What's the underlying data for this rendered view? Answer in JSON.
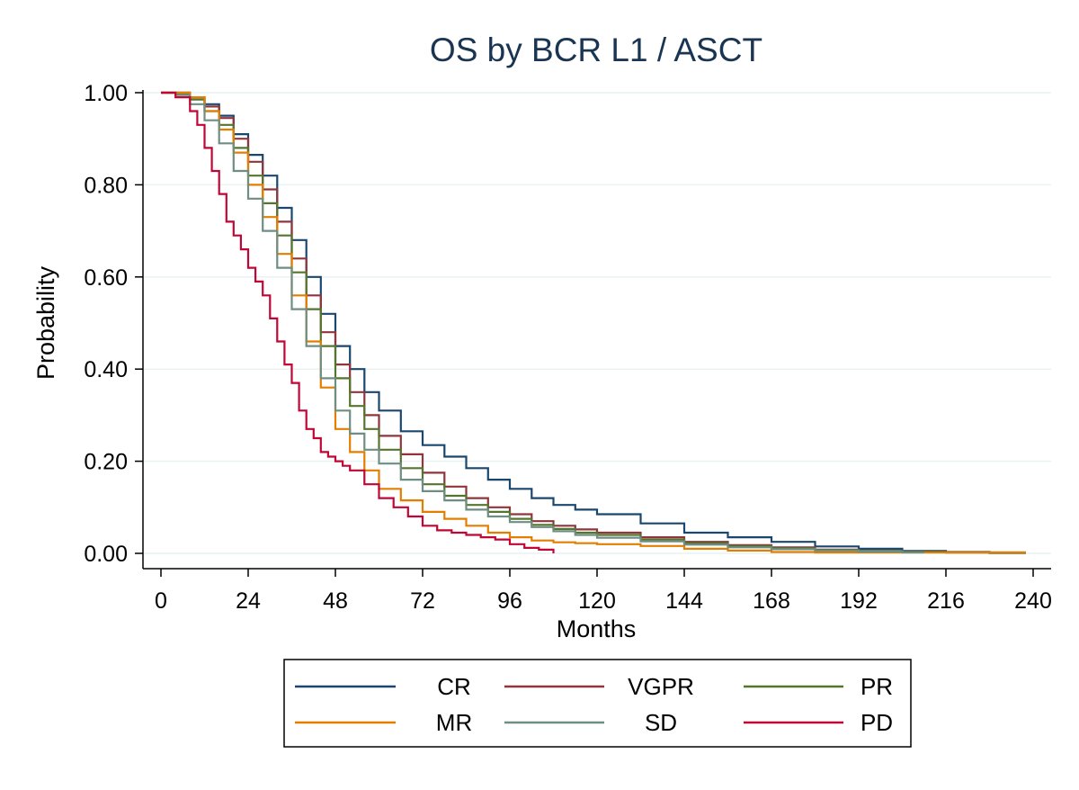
{
  "chart_data": {
    "type": "line",
    "title": "OS by BCR L1 / ASCT",
    "xlabel": "Months",
    "ylabel": "Probability",
    "xlim": [
      0,
      240
    ],
    "ylim": [
      0,
      1
    ],
    "xticks": [
      0,
      24,
      48,
      72,
      96,
      120,
      144,
      168,
      192,
      216,
      240
    ],
    "xtick_labels": [
      "0",
      "24",
      "48",
      "72",
      "96",
      "120",
      "144",
      "168",
      "192",
      "216",
      "240"
    ],
    "yticks": [
      0,
      0.2,
      0.4,
      0.6,
      0.8,
      1.0
    ],
    "ytick_labels": [
      "0.00",
      "0.20",
      "0.40",
      "0.60",
      "0.80",
      "1.00"
    ],
    "grid": "horizontal",
    "legend_placement": "bottom",
    "series": [
      {
        "name": "CR",
        "color": "#1a476f",
        "x": [
          0,
          4,
          8,
          12,
          16,
          20,
          24,
          28,
          32,
          36,
          40,
          44,
          48,
          52,
          56,
          60,
          66,
          72,
          78,
          84,
          90,
          96,
          102,
          108,
          114,
          120,
          132,
          144,
          156,
          168,
          180,
          192,
          204,
          216,
          228,
          238
        ],
        "y": [
          1.0,
          1.0,
          0.99,
          0.975,
          0.95,
          0.91,
          0.865,
          0.82,
          0.75,
          0.68,
          0.6,
          0.52,
          0.45,
          0.4,
          0.35,
          0.31,
          0.265,
          0.235,
          0.21,
          0.185,
          0.16,
          0.14,
          0.12,
          0.105,
          0.095,
          0.085,
          0.065,
          0.045,
          0.035,
          0.025,
          0.015,
          0.01,
          0.005,
          0.003,
          0.002,
          0.002
        ]
      },
      {
        "name": "VGPR",
        "color": "#90353b",
        "x": [
          0,
          4,
          8,
          12,
          16,
          20,
          24,
          28,
          32,
          36,
          40,
          44,
          48,
          52,
          56,
          60,
          66,
          72,
          78,
          84,
          90,
          96,
          102,
          108,
          114,
          120,
          132,
          144,
          156,
          168,
          180,
          192,
          204,
          216,
          228,
          238
        ],
        "y": [
          1.0,
          1.0,
          0.99,
          0.97,
          0.945,
          0.9,
          0.85,
          0.79,
          0.72,
          0.64,
          0.56,
          0.48,
          0.41,
          0.35,
          0.3,
          0.255,
          0.215,
          0.175,
          0.145,
          0.12,
          0.1,
          0.085,
          0.07,
          0.06,
          0.052,
          0.045,
          0.035,
          0.025,
          0.018,
          0.013,
          0.008,
          0.005,
          0.003,
          0.002,
          0.001,
          0.001
        ]
      },
      {
        "name": "PR",
        "color": "#55752f",
        "x": [
          0,
          4,
          8,
          12,
          16,
          20,
          24,
          28,
          32,
          36,
          40,
          44,
          48,
          52,
          56,
          60,
          66,
          72,
          78,
          84,
          90,
          96,
          102,
          108,
          114,
          120,
          132,
          144,
          156,
          168,
          180,
          192,
          204,
          216,
          228,
          238
        ],
        "y": [
          1.0,
          0.998,
          0.985,
          0.96,
          0.93,
          0.88,
          0.82,
          0.76,
          0.69,
          0.61,
          0.53,
          0.45,
          0.38,
          0.32,
          0.27,
          0.225,
          0.185,
          0.15,
          0.125,
          0.105,
          0.09,
          0.075,
          0.062,
          0.053,
          0.045,
          0.04,
          0.03,
          0.022,
          0.016,
          0.011,
          0.007,
          0.005,
          0.003,
          0.002,
          0.001,
          0.001
        ]
      },
      {
        "name": "MR",
        "color": "#e37e00",
        "x": [
          0,
          4,
          8,
          12,
          16,
          20,
          24,
          28,
          32,
          36,
          40,
          44,
          48,
          52,
          56,
          60,
          66,
          72,
          78,
          84,
          90,
          96,
          102,
          108,
          114,
          120,
          132,
          144,
          156,
          168,
          180,
          192,
          204,
          216,
          228,
          238
        ],
        "y": [
          1.0,
          1.0,
          0.99,
          0.96,
          0.92,
          0.87,
          0.8,
          0.73,
          0.65,
          0.56,
          0.46,
          0.36,
          0.27,
          0.22,
          0.18,
          0.14,
          0.115,
          0.09,
          0.075,
          0.06,
          0.045,
          0.035,
          0.028,
          0.024,
          0.022,
          0.02,
          0.016,
          0.01,
          0.006,
          0.003,
          0.002,
          0.002,
          0.002,
          0.002,
          0.002,
          0.002
        ]
      },
      {
        "name": "SD",
        "color": "#6e8e84",
        "x": [
          0,
          4,
          8,
          12,
          16,
          20,
          24,
          28,
          32,
          36,
          40,
          44,
          48,
          52,
          56,
          60,
          66,
          72,
          78,
          84,
          90,
          96,
          102,
          108,
          114,
          120,
          132,
          144,
          156,
          168,
          180,
          192,
          204,
          210
        ],
        "y": [
          1.0,
          0.995,
          0.975,
          0.94,
          0.89,
          0.83,
          0.77,
          0.7,
          0.62,
          0.53,
          0.45,
          0.38,
          0.31,
          0.26,
          0.225,
          0.195,
          0.16,
          0.135,
          0.115,
          0.095,
          0.08,
          0.068,
          0.057,
          0.048,
          0.04,
          0.034,
          0.026,
          0.019,
          0.013,
          0.009,
          0.006,
          0.004,
          0.002,
          0.002
        ]
      },
      {
        "name": "PD",
        "color": "#c10534",
        "x": [
          0,
          4,
          8,
          10,
          12,
          14,
          16,
          18,
          20,
          22,
          24,
          26,
          28,
          30,
          32,
          34,
          36,
          38,
          40,
          42,
          44,
          46,
          48,
          50,
          52,
          56,
          60,
          64,
          68,
          72,
          76,
          80,
          84,
          88,
          92,
          96,
          100,
          104,
          108
        ],
        "y": [
          1.0,
          0.99,
          0.96,
          0.93,
          0.88,
          0.83,
          0.78,
          0.72,
          0.69,
          0.66,
          0.62,
          0.59,
          0.56,
          0.51,
          0.46,
          0.41,
          0.37,
          0.31,
          0.27,
          0.25,
          0.22,
          0.21,
          0.2,
          0.19,
          0.18,
          0.15,
          0.12,
          0.1,
          0.08,
          0.06,
          0.05,
          0.045,
          0.04,
          0.035,
          0.03,
          0.02,
          0.012,
          0.008,
          0.0
        ]
      }
    ],
    "legend": [
      [
        "CR",
        "VGPR",
        "PR"
      ],
      [
        "MR",
        "SD",
        "PD"
      ]
    ]
  }
}
